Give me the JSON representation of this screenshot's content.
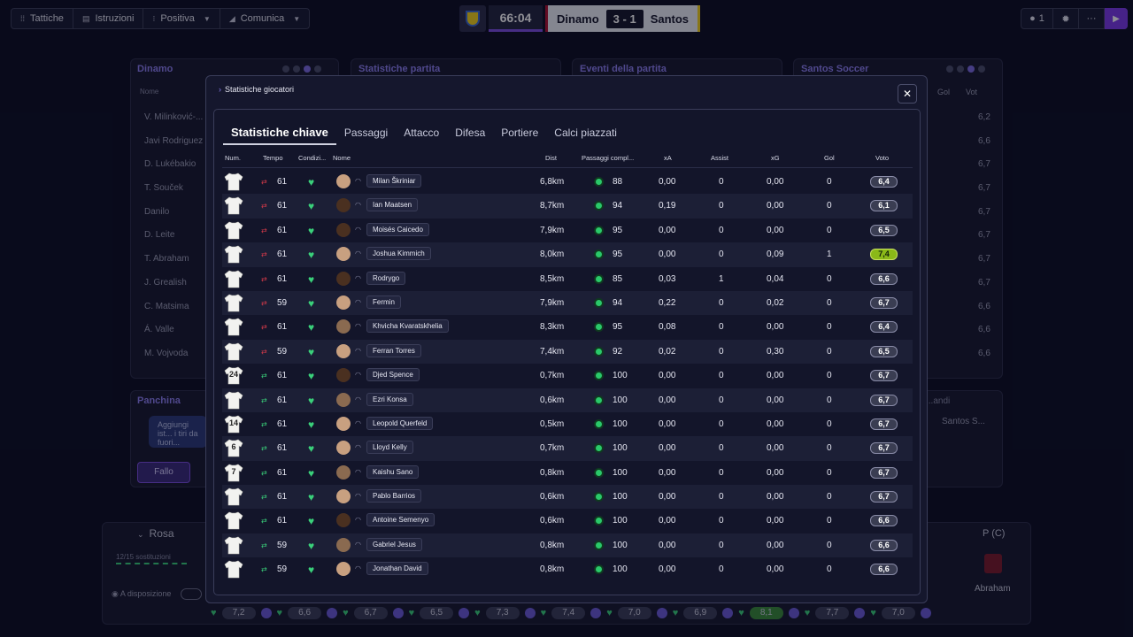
{
  "toolbar": {
    "tactics": "Tattiche",
    "instructions": "Istruzioni",
    "mentality": "Positiva",
    "communicate": "Comunica"
  },
  "match": {
    "clock": "66:04",
    "home": "Dinamo",
    "score": "3 - 1",
    "away": "Santos"
  },
  "topright": {
    "users": "1"
  },
  "background": {
    "panel_dinamo": "Dinamo",
    "panel_stats": "Statistiche partita",
    "panel_events": "Eventi della partita",
    "panel_santos": "Santos Soccer",
    "name_header": "Nome",
    "gol_header": "Gol",
    "vot_header": "Vot",
    "players": [
      "V. Milinković-...",
      "Javi Rodriguez",
      "D. Lukébakio",
      "T. Souček",
      "Danilo",
      "D. Leite",
      "T. Abraham",
      "J. Grealish",
      "C. Matsima",
      "Á. Valle",
      "M. Vojvoda"
    ],
    "right_votes": [
      "6,2",
      "6,6",
      "6,7",
      "6,7",
      "6,7",
      "6,7",
      "6,7",
      "6,7",
      "6,6",
      "6,6",
      "6,6"
    ],
    "bench_title": "Panchina",
    "bench_text": "Aggiungi ist... i tiri da fuori...",
    "foul_button": "Fallo",
    "substitutes_right": "...andi",
    "santos_short": "Santos S...",
    "squad_title": "Rosa",
    "subs_count": "12/15 sostituzioni",
    "available": "A disposizione",
    "position_label": "P (C)",
    "player_abraham": "Abraham",
    "bottom_ratings": [
      "7,2",
      "6,6",
      "6,7",
      "6,5",
      "7,3",
      "7,4",
      "7,0",
      "6,9",
      "8,1",
      "7,7",
      "7,0"
    ]
  },
  "modal": {
    "breadcrumb": "Statistiche giocatori",
    "tabs": [
      "Statistiche chiave",
      "Passaggi",
      "Attacco",
      "Difesa",
      "Portiere",
      "Calci piazzati"
    ],
    "headers": {
      "num": "Num.",
      "tempo": "Tempo",
      "condizione": "Condizi...",
      "nome": "Nome",
      "dist": "Dist",
      "passaggi": "Passaggi compl...",
      "xa": "xA",
      "assist": "Assist",
      "xg": "xG",
      "gol": "Gol",
      "voto": "Voto"
    },
    "rows": [
      {
        "num": "",
        "sub": "out",
        "tempo": "61",
        "name": "Milan Škriniar",
        "dist": "6,8km",
        "pass": "88",
        "xa": "0,00",
        "assist": "0",
        "xg": "0,00",
        "gol": "0",
        "voto": "6,4"
      },
      {
        "num": "",
        "sub": "out",
        "tempo": "61",
        "name": "Ian Maatsen",
        "dist": "8,7km",
        "pass": "94",
        "xa": "0,19",
        "assist": "0",
        "xg": "0,00",
        "gol": "0",
        "voto": "6,1"
      },
      {
        "num": "",
        "sub": "out",
        "tempo": "61",
        "name": "Moisés Caicedo",
        "dist": "7,9km",
        "pass": "95",
        "xa": "0,00",
        "assist": "0",
        "xg": "0,00",
        "gol": "0",
        "voto": "6,5"
      },
      {
        "num": "",
        "sub": "out",
        "tempo": "61",
        "name": "Joshua Kimmich",
        "dist": "8,0km",
        "pass": "95",
        "xa": "0,00",
        "assist": "0",
        "xg": "0,09",
        "gol": "1",
        "voto": "7,4"
      },
      {
        "num": "",
        "sub": "out",
        "tempo": "61",
        "name": "Rodrygo",
        "dist": "8,5km",
        "pass": "85",
        "xa": "0,03",
        "assist": "1",
        "xg": "0,04",
        "gol": "0",
        "voto": "6,6"
      },
      {
        "num": "",
        "sub": "out",
        "tempo": "59",
        "name": "Fermin",
        "dist": "7,9km",
        "pass": "94",
        "xa": "0,22",
        "assist": "0",
        "xg": "0,02",
        "gol": "0",
        "voto": "6,7"
      },
      {
        "num": "",
        "sub": "out",
        "tempo": "61",
        "name": "Khvicha Kvaratskhelia",
        "dist": "8,3km",
        "pass": "95",
        "xa": "0,08",
        "assist": "0",
        "xg": "0,00",
        "gol": "0",
        "voto": "6,4"
      },
      {
        "num": "",
        "sub": "out",
        "tempo": "59",
        "name": "Ferran Torres",
        "dist": "7,4km",
        "pass": "92",
        "xa": "0,02",
        "assist": "0",
        "xg": "0,30",
        "gol": "0",
        "voto": "6,5"
      },
      {
        "num": "24",
        "sub": "in",
        "tempo": "61",
        "name": "Djed Spence",
        "dist": "0,7km",
        "pass": "100",
        "xa": "0,00",
        "assist": "0",
        "xg": "0,00",
        "gol": "0",
        "voto": "6,7"
      },
      {
        "num": "",
        "sub": "in",
        "tempo": "61",
        "name": "Ezri Konsa",
        "dist": "0,6km",
        "pass": "100",
        "xa": "0,00",
        "assist": "0",
        "xg": "0,00",
        "gol": "0",
        "voto": "6,7"
      },
      {
        "num": "14",
        "sub": "in",
        "tempo": "61",
        "name": "Leopold Querfeld",
        "dist": "0,5km",
        "pass": "100",
        "xa": "0,00",
        "assist": "0",
        "xg": "0,00",
        "gol": "0",
        "voto": "6,7"
      },
      {
        "num": "6",
        "sub": "in",
        "tempo": "61",
        "name": "Lloyd Kelly",
        "dist": "0,7km",
        "pass": "100",
        "xa": "0,00",
        "assist": "0",
        "xg": "0,00",
        "gol": "0",
        "voto": "6,7"
      },
      {
        "num": "7",
        "sub": "in",
        "tempo": "61",
        "name": "Kaishu Sano",
        "dist": "0,8km",
        "pass": "100",
        "xa": "0,00",
        "assist": "0",
        "xg": "0,00",
        "gol": "0",
        "voto": "6,7"
      },
      {
        "num": "",
        "sub": "in",
        "tempo": "61",
        "name": "Pablo Barrios",
        "dist": "0,6km",
        "pass": "100",
        "xa": "0,00",
        "assist": "0",
        "xg": "0,00",
        "gol": "0",
        "voto": "6,7"
      },
      {
        "num": "",
        "sub": "in",
        "tempo": "61",
        "name": "Antoine Semenyo",
        "dist": "0,6km",
        "pass": "100",
        "xa": "0,00",
        "assist": "0",
        "xg": "0,00",
        "gol": "0",
        "voto": "6,6"
      },
      {
        "num": "",
        "sub": "in",
        "tempo": "59",
        "name": "Gabriel Jesus",
        "dist": "0,8km",
        "pass": "100",
        "xa": "0,00",
        "assist": "0",
        "xg": "0,00",
        "gol": "0",
        "voto": "6,6"
      },
      {
        "num": "",
        "sub": "in",
        "tempo": "59",
        "name": "Jonathan David",
        "dist": "0,8km",
        "pass": "100",
        "xa": "0,00",
        "assist": "0",
        "xg": "0,00",
        "gol": "0",
        "voto": "6,6"
      }
    ]
  },
  "colors": {
    "accent": "#7b3ae8",
    "condition_green": "#3ad07a",
    "highlight_rating": "#8ab818"
  }
}
